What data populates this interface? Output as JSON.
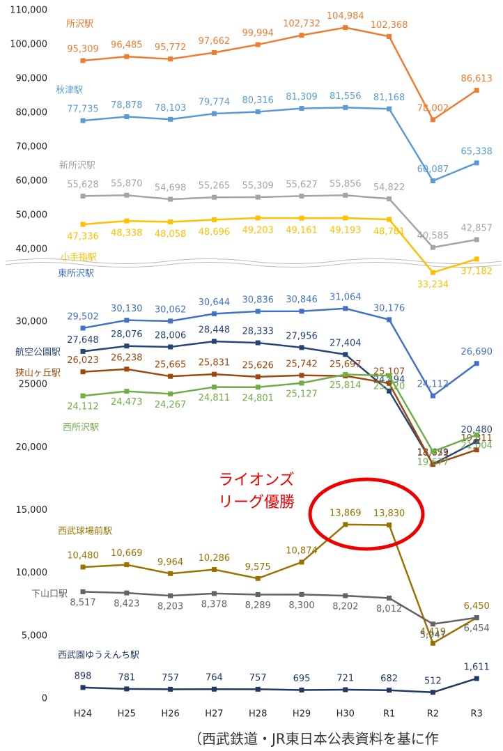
{
  "chart_data": [
    {
      "type": "line",
      "ylim": [
        40000,
        110000
      ],
      "yticks": [
        {
          "value": 40000,
          "label": "40,000"
        },
        {
          "value": 50000,
          "label": "50,000"
        },
        {
          "value": 60000,
          "label": "60,000"
        },
        {
          "value": 70000,
          "label": "70,000"
        },
        {
          "value": 80000,
          "label": "80,000"
        },
        {
          "value": 90000,
          "label": "90,000"
        },
        {
          "value": 100000,
          "label": "100,000"
        },
        {
          "value": 110000,
          "label": "110,000"
        }
      ],
      "series": [
        {
          "name": "所沢駅",
          "color": "#ed7d31",
          "values": [
            95309,
            96485,
            95772,
            97662,
            99994,
            102732,
            104984,
            102368,
            78002,
            86613
          ],
          "value_labels": [
            "95,309",
            "96,485",
            "95,772",
            "97,662",
            "99,994",
            "102,732",
            "104,984",
            "102,368",
            "78,002",
            "86,613"
          ]
        },
        {
          "name": "秋津駅",
          "color": "#5b9bd5",
          "values": [
            77735,
            78878,
            78103,
            79774,
            80316,
            81309,
            81556,
            81168,
            60087,
            65338
          ],
          "value_labels": [
            "77,735",
            "78,878",
            "78,103",
            "79,774",
            "80,316",
            "81,309",
            "81,556",
            "81,168",
            "60,087",
            "65,338"
          ]
        },
        {
          "name": "新所沢駅",
          "color": "#a5a5a5",
          "values": [
            55628,
            55870,
            54698,
            55265,
            55309,
            55627,
            55856,
            54822,
            40585,
            42857
          ],
          "value_labels": [
            "55,628",
            "55,870",
            "54,698",
            "55,265",
            "55,309",
            "55,627",
            "55,856",
            "54,822",
            "40,585",
            "42,857"
          ]
        },
        {
          "name": "小手指駅",
          "color": "#ffc000",
          "values": [
            47336,
            48338,
            48058,
            48696,
            49203,
            49161,
            49193,
            48781,
            33234,
            37182
          ],
          "value_labels": [
            "47,336",
            "48,338",
            "48,058",
            "48,696",
            "49,203",
            "49,161",
            "49,193",
            "48,781",
            "33,234",
            "37,182"
          ]
        }
      ]
    },
    {
      "type": "line",
      "categories": [
        "H24",
        "H25",
        "H26",
        "H27",
        "H28",
        "H29",
        "H30",
        "R1",
        "R2",
        "R3"
      ],
      "ylim": [
        0,
        30000
      ],
      "yticks": [
        0,
        {
          "value": 5000,
          "label": "5,000"
        },
        {
          "value": 10000,
          "label": "10,000"
        },
        {
          "value": 15000,
          "label": "15,000"
        },
        {
          "value": 20000,
          "label": "20,000"
        },
        25000,
        {
          "value": 30000,
          "label": "30,000"
        }
      ],
      "annotation": [
        "ライオンズ",
        "リーグ優勝"
      ],
      "series": [
        {
          "name": "東所沢駅",
          "color": "#4472c4",
          "values": [
            29502,
            30130,
            30062,
            30644,
            30836,
            30846,
            31064,
            30176,
            24112,
            26690
          ],
          "value_labels": [
            "29,502",
            "30,130",
            "30,062",
            "30,644",
            "30,836",
            "30,846",
            "31,064",
            "30,176",
            "24,112",
            "26,690"
          ]
        },
        {
          "name": "航空公園駅",
          "color": "#264478",
          "values": [
            27648,
            28076,
            28006,
            28448,
            28333,
            27956,
            27404,
            24494,
            18679,
            20480
          ],
          "value_labels": [
            "27,648",
            "28,076",
            "28,006",
            "28,448",
            "28,333",
            "27,956",
            "27,404",
            "24,494",
            "18,679",
            "20,480"
          ]
        },
        {
          "name": "狭山ヶ丘駅",
          "color": "#9e480e",
          "values": [
            26023,
            26238,
            25665,
            25831,
            25626,
            25742,
            25697,
            25107,
            18651,
            19811
          ],
          "value_labels": [
            "26,023",
            "26,238",
            "25,665",
            "25,831",
            "25,626",
            "25,742",
            "25,697",
            "25,107",
            "18,651",
            "19,811"
          ]
        },
        {
          "name": "西所沢駅",
          "color": "#70ad47",
          "values": [
            24112,
            24473,
            24267,
            24811,
            24801,
            25127,
            25814,
            25720,
            19677,
            21004
          ],
          "value_labels": [
            "24,112",
            "24,473",
            "24,267",
            "24,811",
            "24,801",
            "25,127",
            "25,814",
            "25,720",
            "19,677",
            "21,004"
          ]
        },
        {
          "name": "西武球場前駅",
          "color": "#997300",
          "values": [
            10480,
            10669,
            9964,
            10286,
            9575,
            10874,
            13869,
            13830,
            4419,
            6450
          ],
          "value_labels": [
            "10,480",
            "10,669",
            "9,964",
            "10,286",
            "9,575",
            "10,874",
            "13,869",
            "13,830",
            "4,419",
            "6,450"
          ]
        },
        {
          "name": "下山口駅",
          "color": "#636363",
          "values": [
            8517,
            8423,
            8203,
            8378,
            8289,
            8300,
            8202,
            8012,
            5947,
            6454
          ],
          "value_labels": [
            "8,517",
            "8,423",
            "8,203",
            "8,378",
            "8,289",
            "8,300",
            "8,202",
            "8,012",
            "5,947",
            "6,454"
          ]
        },
        {
          "name": "西武園ゆうえんち駅",
          "color": "#203864",
          "values": [
            898,
            781,
            757,
            764,
            757,
            695,
            721,
            682,
            512,
            1611
          ],
          "value_labels": [
            "898",
            "781",
            "757",
            "764",
            "757",
            "695",
            "721",
            "682",
            "512",
            "1,611"
          ]
        }
      ]
    }
  ],
  "note": "（西武鉄道・JR東日本公表資料を基に作"
}
